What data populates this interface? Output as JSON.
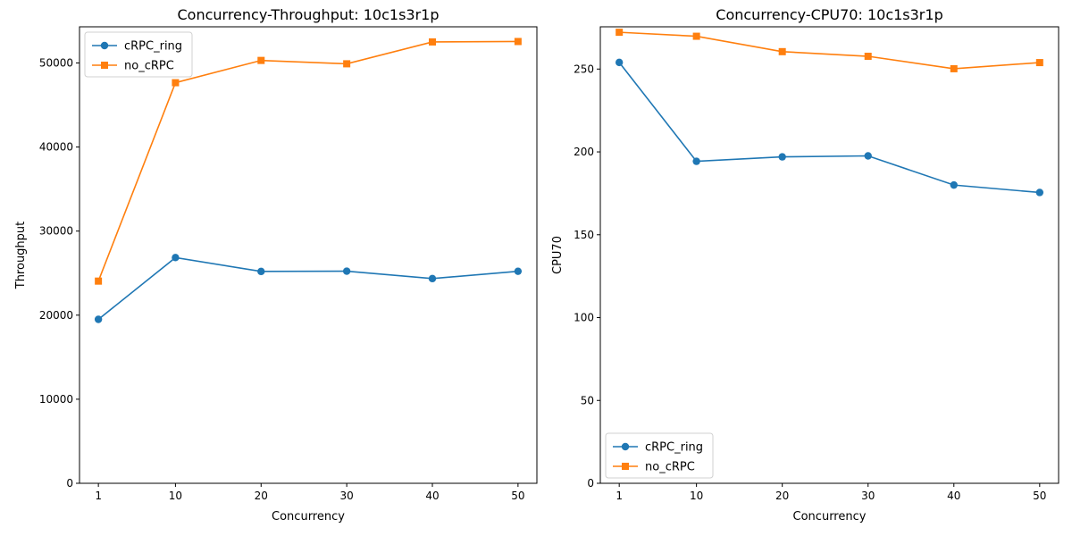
{
  "chart_data": [
    {
      "type": "line",
      "title": "Concurrency-Throughput: 10c1s3r1p",
      "xlabel": "Concurrency",
      "ylabel": "Throughput",
      "x": [
        1,
        10,
        20,
        30,
        40,
        50
      ],
      "xticks": [
        "1",
        "10",
        "20",
        "30",
        "40",
        "50"
      ],
      "ylim": [
        0,
        54300
      ],
      "yticks": [
        0,
        10000,
        20000,
        30000,
        40000,
        50000
      ],
      "legend_position": "upper-left",
      "series": [
        {
          "name": "cRPC_ring",
          "values": [
            19500,
            26850,
            25200,
            25230,
            24350,
            25220
          ],
          "color": "#1f77b4",
          "marker": "circle"
        },
        {
          "name": "no_cRPC",
          "values": [
            24050,
            47650,
            50300,
            49900,
            52500,
            52550
          ],
          "color": "#ff7f0e",
          "marker": "square"
        }
      ]
    },
    {
      "type": "line",
      "title": "Concurrency-CPU70: 10c1s3r1p",
      "xlabel": "Concurrency",
      "ylabel": "CPU70",
      "x": [
        1,
        10,
        20,
        30,
        40,
        50
      ],
      "xticks": [
        "1",
        "10",
        "20",
        "30",
        "40",
        "50"
      ],
      "ylim": [
        0,
        275.5
      ],
      "yticks": [
        0,
        50,
        100,
        150,
        200,
        250
      ],
      "legend_position": "lower-left",
      "series": [
        {
          "name": "cRPC_ring",
          "values": [
            254,
            194.3,
            197,
            197.6,
            180,
            175.5
          ],
          "color": "#1f77b4",
          "marker": "circle"
        },
        {
          "name": "no_cRPC",
          "values": [
            272.2,
            269.8,
            260.5,
            257.7,
            250.2,
            253.9
          ],
          "color": "#ff7f0e",
          "marker": "square"
        }
      ]
    }
  ]
}
